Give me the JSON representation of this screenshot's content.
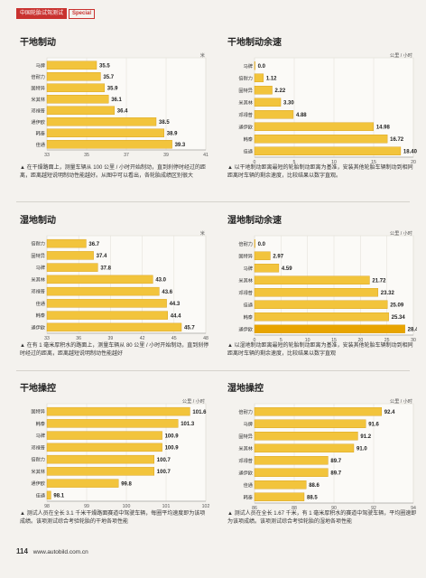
{
  "header": {
    "tag": "中国轮胎试驾测试",
    "special": "Special"
  },
  "footer": {
    "page": "114",
    "url": "www.autobild.com.cn"
  },
  "colors": {
    "bar": "#f2c43c",
    "bar_edge": "#d49a10",
    "highlight": "#e8a400",
    "title_accent": "#c9322f"
  },
  "panels": [
    {
      "title": "干地制动",
      "caption": "▲ 在干燥路面上，测量车辆从 100 公里 / 小时开始制动，直到刹停时经过的距离，距离越短说明制动性能越好。从图中可以看出，各轮胎成绩区别很大",
      "chart_data": {
        "type": "bar",
        "categories": [
          "马牌",
          "倍耐力",
          "固特异",
          "米其林",
          "邓禄普",
          "通伊欧",
          "韩泰",
          "佳通"
        ],
        "values": [
          35.5,
          35.7,
          35.9,
          36.1,
          36.4,
          38.5,
          38.9,
          39.3
        ],
        "labels": [
          "35.5",
          "35.7",
          "35.9",
          "36.1",
          "36.4",
          "38.5",
          "38.9",
          "39.3"
        ],
        "xlim": [
          33,
          41
        ],
        "ticks": [
          "33",
          "35",
          "37",
          "39",
          "41"
        ],
        "unit": "米"
      }
    },
    {
      "title": "干地制动余速",
      "caption": "▲ 以干地制动距离最短的轮胎制动距离为基准，安装其他轮胎车辆制动到相同距离时车辆的剩余速度，比较结果以数字直观。",
      "chart_data": {
        "type": "bar",
        "categories": [
          "马牌",
          "倍耐力",
          "固特异",
          "米其林",
          "邓禄普",
          "通伊欧",
          "韩泰",
          "佳通"
        ],
        "values": [
          0.0,
          1.12,
          2.22,
          3.3,
          4.88,
          14.98,
          16.72,
          18.4
        ],
        "labels": [
          "0.0",
          "1.12",
          "2.22",
          "3.30",
          "4.88",
          "14.98",
          "16.72",
          "18.40"
        ],
        "xlim": [
          0,
          20
        ],
        "ticks": [
          "0",
          "5",
          "10",
          "15",
          "20"
        ],
        "unit": "公里 / 小时"
      }
    },
    {
      "title": "湿地制动",
      "caption": "▲ 在有 1 毫米厚积水的路面上，测量车辆从 80 公里 / 小时开始制动，直到刹停时经过的距离，距离越短说明制动性能越好",
      "chart_data": {
        "type": "bar",
        "categories": [
          "倍耐力",
          "固特异",
          "马牌",
          "米其林",
          "邓禄普",
          "佳通",
          "韩泰",
          "通伊欧"
        ],
        "values": [
          36.7,
          37.4,
          37.8,
          43.0,
          43.6,
          44.3,
          44.4,
          45.7
        ],
        "labels": [
          "36.7",
          "37.4",
          "37.8",
          "43.0",
          "43.6",
          "44.3",
          "44.4",
          "45.7"
        ],
        "xlim": [
          33,
          48
        ],
        "ticks": [
          "33",
          "36",
          "39",
          "42",
          "45",
          "48"
        ],
        "unit": "米"
      }
    },
    {
      "title": "湿地制动余速",
      "caption": "▲ 以湿地制动距离最短的轮胎制动距离为基准，安装其他轮胎车辆制动到相同距离时车辆的剩余速度，比较结果以数字直观",
      "chart_data": {
        "type": "bar",
        "categories": [
          "倍耐力",
          "固特异",
          "马牌",
          "米其林",
          "邓禄普",
          "佳通",
          "韩泰",
          "通伊欧"
        ],
        "values": [
          0.0,
          2.97,
          4.59,
          21.72,
          23.32,
          25.09,
          25.34,
          28.41
        ],
        "labels": [
          "0.0",
          "2.97",
          "4.59",
          "21.72",
          "23.32",
          "25.09",
          "25.34",
          "28.41"
        ],
        "xlim": [
          0,
          30
        ],
        "ticks": [
          "0",
          "5",
          "10",
          "15",
          "20",
          "25",
          "30"
        ],
        "unit": "公里 / 小时"
      }
    },
    {
      "title": "干地操控",
      "caption": "▲ 测试人员在全长 3.1 千米干燥路面赛道中驾驶车辆，每圈平均速度即为该项成绩。该项测试综合考验轮胎的干地各项性能",
      "chart_data": {
        "type": "bar",
        "categories": [
          "固特异",
          "韩泰",
          "马牌",
          "邓禄普",
          "倍耐力",
          "米其林",
          "通伊欧",
          "佳通"
        ],
        "values": [
          101.6,
          101.3,
          100.9,
          100.9,
          100.7,
          100.7,
          99.8,
          98.1
        ],
        "labels": [
          "101.6",
          "101.3",
          "100.9",
          "100.9",
          "100.7",
          "100.7",
          "99.8",
          "98.1"
        ],
        "xlim": [
          98,
          102
        ],
        "ticks": [
          "98",
          "99",
          "100",
          "101",
          "102"
        ],
        "unit": "公里 / 小时"
      }
    },
    {
      "title": "湿地操控",
      "caption": "▲ 测试人员在全长 1.67 千米，有 1 毫米厚积水的赛道中驾驶车辆，平均圈速即为该项成绩。该项测试综合考验轮胎的湿地各项性能",
      "chart_data": {
        "type": "bar",
        "categories": [
          "倍耐力",
          "马牌",
          "固特异",
          "米其林",
          "邓禄普",
          "通伊欧",
          "佳通",
          "韩泰"
        ],
        "values": [
          92.4,
          91.6,
          91.2,
          91.0,
          89.7,
          89.7,
          88.6,
          88.5
        ],
        "labels": [
          "92.4",
          "91.6",
          "91.2",
          "91.0",
          "89.7",
          "89.7",
          "88.6",
          "88.5"
        ],
        "xlim": [
          86,
          94
        ],
        "ticks": [
          "86",
          "88",
          "90",
          "92",
          "94"
        ],
        "unit": "公里 / 小时"
      }
    }
  ]
}
